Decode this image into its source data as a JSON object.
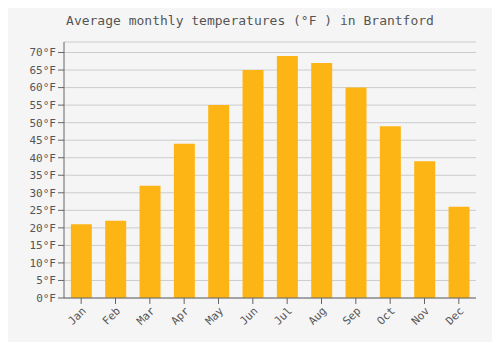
{
  "chart_data": {
    "type": "bar",
    "title": "Average monthly temperatures (°F ) in Brantford",
    "categories": [
      "Jan",
      "Feb",
      "Mar",
      "Apr",
      "May",
      "Jun",
      "Jul",
      "Aug",
      "Sep",
      "Oct",
      "Nov",
      "Dec"
    ],
    "values": [
      21,
      22,
      32,
      44,
      55,
      65,
      69,
      67,
      60,
      49,
      39,
      26
    ],
    "color": "#FDB515",
    "ylim": [
      0,
      73
    ],
    "yticks": [
      {
        "value": 0,
        "label": "0°F"
      },
      {
        "value": 5,
        "label": "5°F"
      },
      {
        "value": 10,
        "label": "10°F"
      },
      {
        "value": 15,
        "label": "15°F"
      },
      {
        "value": 20,
        "label": "20°F"
      },
      {
        "value": 25,
        "label": "25°F"
      },
      {
        "value": 30,
        "label": "30°F"
      },
      {
        "value": 35,
        "label": "35°F"
      },
      {
        "value": 40,
        "label": "40°F"
      },
      {
        "value": 45,
        "label": "45°F"
      },
      {
        "value": 50,
        "label": "50°F"
      },
      {
        "value": 55,
        "label": "55°F"
      },
      {
        "value": 60,
        "label": "60°F"
      },
      {
        "value": 65,
        "label": "65°F"
      },
      {
        "value": 70,
        "label": "70°F"
      }
    ],
    "grid": true
  }
}
